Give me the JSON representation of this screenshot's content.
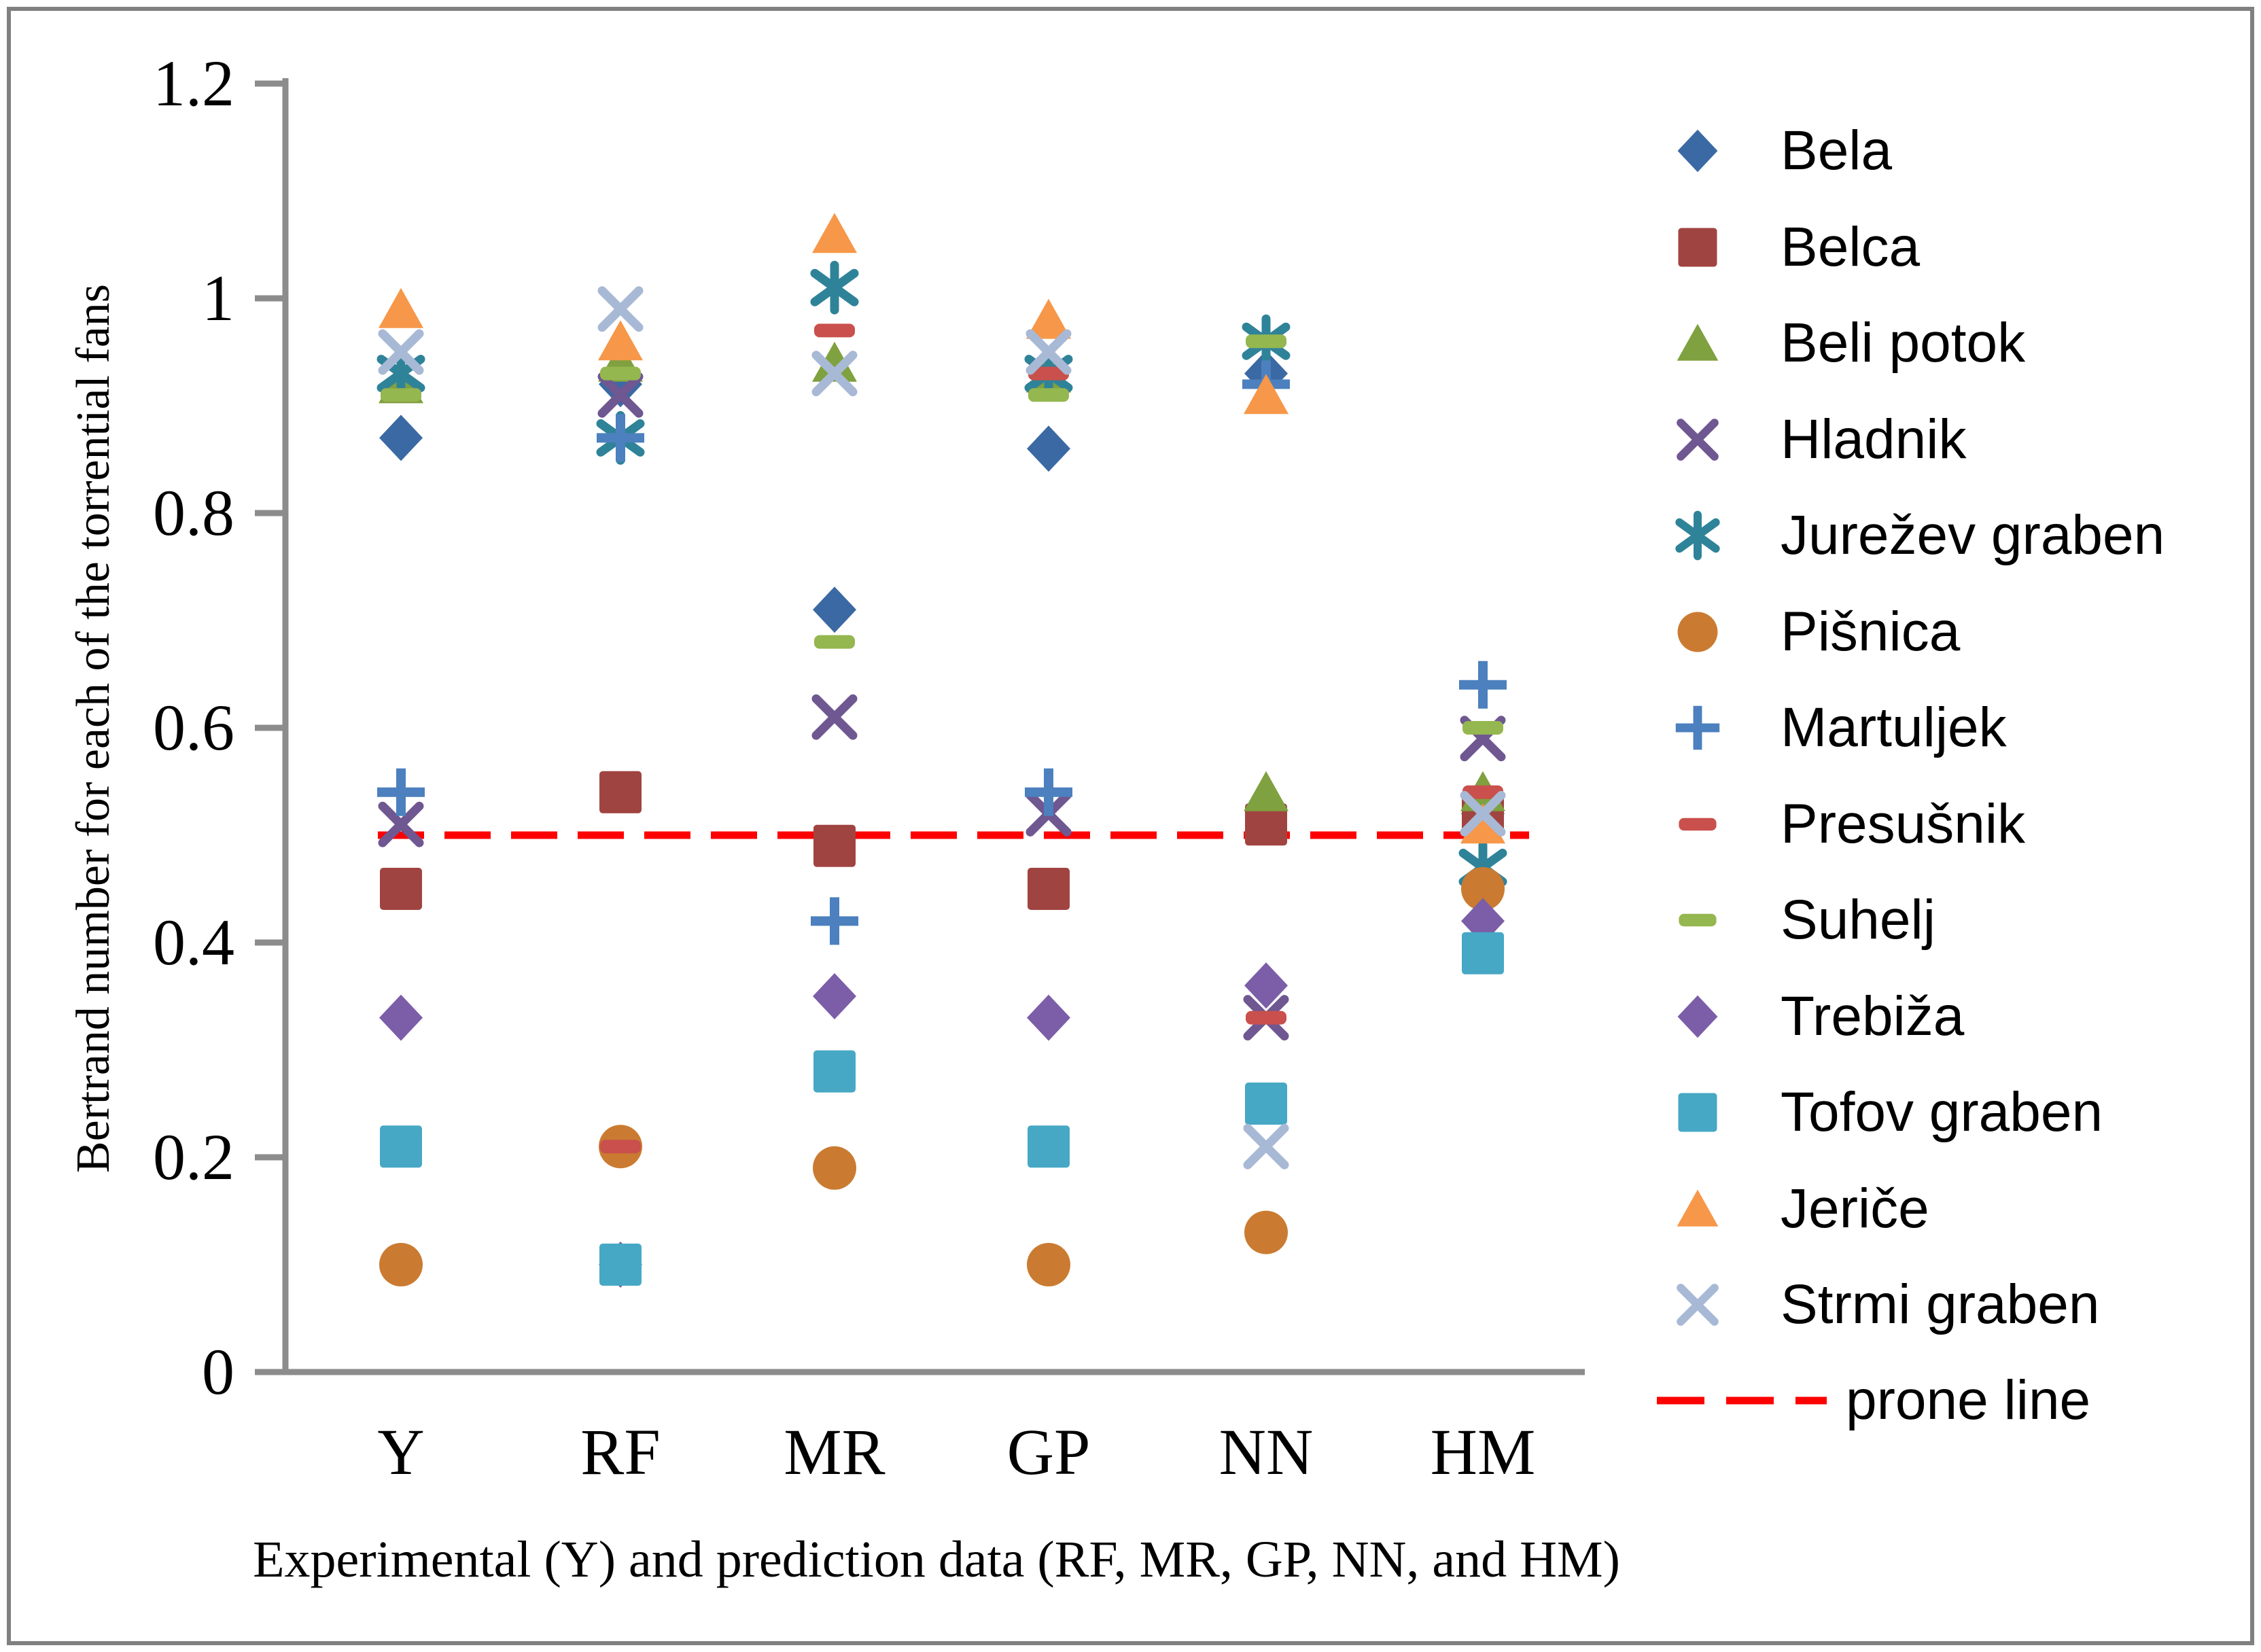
{
  "chart_data": {
    "type": "scatter",
    "title": "",
    "xlabel": "Experimental (Y) and prediction data (RF, MR, GP, NN, and HM)",
    "ylabel": "Bertrand number for each of the torrential fans",
    "categories": [
      "Y",
      "RF",
      "MR",
      "GP",
      "NN",
      "HM"
    ],
    "ylim": [
      0,
      1.2
    ],
    "yticks": [
      0,
      0.2,
      0.4,
      0.6,
      0.8,
      1,
      1.2
    ],
    "ytick_labels": [
      "0",
      "0.2",
      "0.4",
      "0.6",
      "0.8",
      "1",
      "1.2"
    ],
    "grid": "off",
    "legend_position": "right",
    "axis_color": "#8C8C8C",
    "series": [
      {
        "name": "Bela",
        "marker": "diamond",
        "color": "#3B69A4",
        "values": [
          0.87,
          0.92,
          0.71,
          0.86,
          0.93,
          0.52
        ]
      },
      {
        "name": "Belca",
        "marker": "square",
        "color": "#A04441",
        "values": [
          0.45,
          0.54,
          0.49,
          0.45,
          0.51,
          0.52
        ]
      },
      {
        "name": "Beli potok",
        "marker": "triangle",
        "color": "#7FA13F",
        "values": [
          0.92,
          0.94,
          0.94,
          0.93,
          0.54,
          0.54
        ]
      },
      {
        "name": "Hladnik",
        "marker": "x",
        "color": "#6F5791",
        "values": [
          0.51,
          0.91,
          0.61,
          0.52,
          0.33,
          0.59
        ]
      },
      {
        "name": "Jurežev graben",
        "marker": "asterisk",
        "color": "#2F8399",
        "values": [
          0.93,
          0.87,
          1.01,
          0.93,
          0.96,
          0.47
        ]
      },
      {
        "name": "Pišnica",
        "marker": "circle",
        "color": "#CA7B31",
        "values": [
          0.1,
          0.21,
          0.19,
          0.1,
          0.13,
          0.45
        ]
      },
      {
        "name": "Martuljek",
        "marker": "plus",
        "color": "#4C80BE",
        "values": [
          0.54,
          0.87,
          0.42,
          0.54,
          0.92,
          0.64
        ]
      },
      {
        "name": "Presušnik",
        "marker": "dash",
        "color": "#C9504C",
        "values": [
          0.91,
          0.21,
          0.97,
          0.93,
          0.33,
          0.54
        ]
      },
      {
        "name": "Suhelj",
        "marker": "dash",
        "color": "#94B74F",
        "values": [
          0.91,
          0.93,
          0.68,
          0.91,
          0.96,
          0.6
        ]
      },
      {
        "name": "Trebiža",
        "marker": "diamond",
        "color": "#7B5EA7",
        "values": [
          0.33,
          0.1,
          0.35,
          0.33,
          0.36,
          0.42
        ]
      },
      {
        "name": "Tofov graben",
        "marker": "square",
        "color": "#46A8C4",
        "values": [
          0.21,
          0.1,
          0.28,
          0.21,
          0.25,
          0.39
        ]
      },
      {
        "name": "Jeriče",
        "marker": "triangle",
        "color": "#F79749",
        "values": [
          0.99,
          0.96,
          1.06,
          0.98,
          0.91,
          0.51
        ]
      },
      {
        "name": "Strmi graben",
        "marker": "x",
        "color": "#A8B9D6",
        "values": [
          0.95,
          0.99,
          0.93,
          0.95,
          0.21,
          0.52
        ]
      }
    ],
    "reference_line": {
      "label": "prone line",
      "value": 0.5,
      "color": "#FE0000",
      "style": "dashed"
    }
  }
}
